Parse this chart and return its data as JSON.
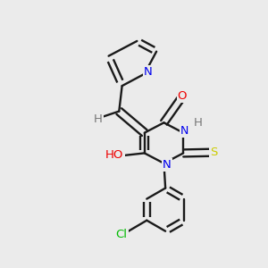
{
  "background_color": "#ebebeb",
  "bond_color": "#1a1a1a",
  "atom_colors": {
    "N": "#0000ee",
    "O": "#ee0000",
    "S": "#cccc00",
    "Cl": "#00bb00",
    "H": "#777777",
    "C": "#1a1a1a"
  },
  "figsize": [
    3.0,
    3.0
  ],
  "dpi": 100
}
